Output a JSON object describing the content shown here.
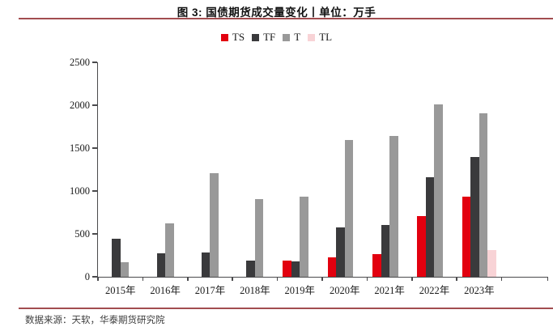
{
  "header": {
    "title": "图 3: 国债期货成交量变化丨单位：万手"
  },
  "footer": {
    "source": "数据来源：天软，华泰期货研究院"
  },
  "colors": {
    "accent_rule": "#a24d50",
    "axis": "#4a4a4c",
    "ts": "#e2000f",
    "tf": "#3a3a3c",
    "t": "#999999",
    "tl": "#f8d3d6"
  },
  "chart_data": {
    "type": "bar",
    "title": "图 3: 国债期货成交量变化丨单位：万手",
    "xlabel": "",
    "ylabel": "",
    "ylim": [
      0,
      2500
    ],
    "yticks": [
      0,
      500,
      1000,
      1500,
      2000,
      2500
    ],
    "grid": false,
    "legend_position": "top",
    "categories": [
      "2015年",
      "2016年",
      "2017年",
      "2018年",
      "2019年",
      "2020年",
      "2021年",
      "2022年",
      "2023年"
    ],
    "series": [
      {
        "name": "TS",
        "color": "#e2000f",
        "values": [
          0,
          0,
          0,
          0,
          190,
          225,
          260,
          710,
          935
        ]
      },
      {
        "name": "TF",
        "color": "#3a3a3c",
        "values": [
          440,
          270,
          280,
          190,
          175,
          575,
          605,
          1165,
          1395
        ]
      },
      {
        "name": "T",
        "color": "#999999",
        "values": [
          170,
          625,
          1210,
          910,
          930,
          1595,
          1645,
          2010,
          1910
        ]
      },
      {
        "name": "TL",
        "color": "#f8d3d6",
        "values": [
          0,
          0,
          0,
          0,
          0,
          0,
          0,
          0,
          310
        ]
      }
    ]
  }
}
